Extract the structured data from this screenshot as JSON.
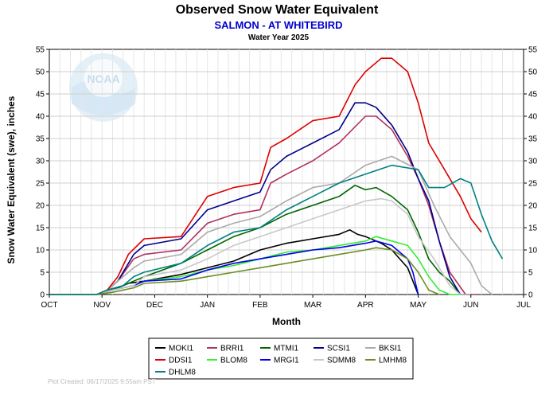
{
  "chart_data": {
    "type": "line",
    "title": "Observed Snow Water Equivalent",
    "subtitle": "SALMON - AT WHITEBIRD",
    "subtitle2": "Water Year 2025",
    "xlabel": "Month",
    "ylabel": "Snow Water Equivalent (swe),  inches",
    "ylim": [
      0,
      55
    ],
    "yticks": [
      "0",
      "5",
      "10",
      "15",
      "20",
      "25",
      "30",
      "35",
      "40",
      "45",
      "50",
      "55"
    ],
    "xlim": [
      0,
      9
    ],
    "x_tick_labels": [
      "OCT",
      "NOV",
      "DEC",
      "JAN",
      "FEB",
      "MAR",
      "APR",
      "MAY",
      "JUN",
      "JUL"
    ],
    "grid": true,
    "legend_position": "bottom",
    "logo_text": "NOAA",
    "footer": "Plot Created: 06/17/2025 9:55am PST",
    "series": [
      {
        "name": "MOKI1",
        "color": "#000000",
        "x": [
          0,
          0.9,
          1.0,
          1.3,
          1.5,
          1.8,
          2.5,
          3.0,
          3.5,
          4.0,
          4.5,
          5.0,
          5.5,
          5.7,
          5.85,
          6.0,
          6.3,
          6.5,
          6.8,
          7.0
        ],
        "y": [
          0,
          0,
          0.5,
          1.5,
          2.5,
          3,
          4.5,
          6,
          7.5,
          10,
          11.5,
          12.5,
          13.5,
          14.5,
          13.5,
          13,
          11.5,
          10,
          6,
          0
        ]
      },
      {
        "name": "BRRI1",
        "color": "#b03060",
        "x": [
          0,
          0.9,
          1.1,
          1.3,
          1.6,
          1.8,
          2.5,
          3.0,
          3.5,
          4.0,
          4.2,
          4.5,
          5.0,
          5.5,
          6.0,
          6.2,
          6.5,
          6.8,
          7.0,
          7.2,
          7.4,
          7.6,
          7.9,
          8.0,
          8.1
        ],
        "y": [
          0,
          0,
          1,
          3,
          8,
          9,
          10,
          16,
          18,
          19,
          25,
          27,
          30,
          34,
          40,
          40,
          37,
          31,
          26,
          20,
          12,
          5,
          0,
          0,
          0
        ]
      },
      {
        "name": "MTMI1",
        "color": "#006400",
        "x": [
          0,
          0.9,
          1.2,
          1.6,
          1.8,
          2.5,
          3.0,
          3.5,
          4.0,
          4.5,
          5.0,
          5.5,
          5.8,
          6.0,
          6.2,
          6.5,
          6.8,
          7.0,
          7.2,
          7.4,
          7.6,
          7.8,
          8.0
        ],
        "y": [
          0,
          0,
          1,
          3,
          4,
          7,
          10,
          13,
          15,
          18,
          20,
          22,
          24.5,
          23.5,
          24,
          22,
          19,
          14,
          8,
          5,
          3,
          0,
          0
        ]
      },
      {
        "name": "SCSI1",
        "color": "#00008b",
        "x": [
          0,
          0.9,
          1.1,
          1.3,
          1.6,
          1.8,
          2.5,
          3.0,
          3.5,
          4.0,
          4.2,
          4.5,
          5.0,
          5.5,
          5.8,
          6.0,
          6.2,
          6.5,
          6.8,
          7.0,
          7.2,
          7.4,
          7.6,
          7.8,
          8.0
        ],
        "y": [
          0,
          0,
          1,
          3,
          9,
          11,
          12.5,
          19,
          21,
          23,
          28,
          31,
          34,
          37,
          43,
          43,
          42,
          38,
          32,
          26,
          21,
          12,
          4,
          0,
          0
        ]
      },
      {
        "name": "BKSI1",
        "color": "#aaaaaa",
        "x": [
          0,
          0.9,
          1.1,
          1.3,
          1.6,
          1.8,
          2.5,
          3.0,
          3.5,
          4.0,
          4.5,
          5.0,
          5.5,
          6.0,
          6.5,
          7.0,
          7.3,
          7.6,
          8.0,
          8.2,
          8.4
        ],
        "y": [
          0,
          0,
          1,
          3,
          6,
          7.5,
          9,
          14,
          16,
          17.5,
          21,
          24,
          25,
          29,
          31,
          28,
          20,
          13,
          7,
          2,
          0
        ]
      },
      {
        "name": "DDSI1",
        "color": "#dd0000",
        "x": [
          0,
          0.9,
          1.1,
          1.3,
          1.5,
          1.8,
          2.5,
          3.0,
          3.5,
          4.0,
          4.2,
          4.5,
          5.0,
          5.5,
          5.8,
          6.0,
          6.3,
          6.5,
          6.8,
          7.0,
          7.2,
          7.5,
          7.8,
          8.0,
          8.2
        ],
        "y": [
          0,
          0,
          1,
          4,
          9,
          12.5,
          13,
          22,
          24,
          25,
          33,
          35,
          39,
          40,
          47,
          50,
          53,
          53,
          50,
          43,
          34,
          28,
          22,
          17,
          14
        ]
      },
      {
        "name": "BLOM8",
        "color": "#33ee33",
        "x": [
          0,
          0.9,
          1.2,
          1.6,
          1.8,
          2.5,
          3.0,
          3.5,
          4.0,
          4.5,
          5.0,
          5.5,
          6.0,
          6.2,
          6.5,
          6.8,
          7.0,
          7.2,
          7.4,
          7.6,
          7.8
        ],
        "y": [
          0,
          0,
          1,
          2,
          3,
          4,
          5.5,
          6.5,
          8,
          9.5,
          10,
          11,
          12,
          13,
          12,
          11,
          8,
          4,
          1,
          0,
          0
        ]
      },
      {
        "name": "MRGI1",
        "color": "#0000ee",
        "x": [
          0,
          0.9,
          1.2,
          1.6,
          1.8,
          2.5,
          3.0,
          3.5,
          4.0,
          4.5,
          5.0,
          5.5,
          6.0,
          6.2,
          6.5,
          6.8,
          6.9,
          7.0
        ],
        "y": [
          0,
          0,
          1,
          2,
          3,
          3.5,
          5.5,
          7,
          8,
          9,
          10,
          10.5,
          11.5,
          12,
          11,
          8,
          5,
          0
        ]
      },
      {
        "name": "SDMM8",
        "color": "#c8c8c8",
        "x": [
          0,
          0.9,
          1.2,
          1.6,
          1.8,
          2.5,
          3.0,
          3.5,
          4.0,
          4.5,
          5.0,
          5.5,
          6.0,
          6.3,
          6.5,
          6.8,
          7.0,
          7.3,
          7.6,
          7.8,
          8.0
        ],
        "y": [
          0,
          0,
          1,
          2,
          4,
          5.5,
          8,
          11,
          13,
          15,
          17,
          19,
          21,
          21.5,
          21,
          18,
          13,
          8,
          2,
          0,
          0
        ]
      },
      {
        "name": "LMHM8",
        "color": "#6b8e23",
        "x": [
          0,
          0.9,
          1.2,
          1.6,
          1.8,
          2.5,
          3.0,
          3.5,
          4.0,
          4.5,
          5.0,
          5.5,
          6.0,
          6.2,
          6.5,
          6.8,
          7.0,
          7.2,
          7.4
        ],
        "y": [
          0,
          0,
          0.5,
          1.5,
          2.5,
          3,
          4,
          5,
          6,
          7,
          8,
          9,
          10,
          10.5,
          10,
          8,
          5,
          1,
          0
        ]
      },
      {
        "name": "DHLM8",
        "color": "#008080",
        "x": [
          0,
          0.9,
          1.1,
          1.4,
          1.6,
          1.8,
          2.5,
          3.0,
          3.5,
          4.0,
          4.5,
          5.0,
          5.5,
          6.0,
          6.5,
          7.0,
          7.2,
          7.5,
          7.8,
          8.0,
          8.2,
          8.4,
          8.6
        ],
        "y": [
          0,
          0,
          1,
          2,
          4,
          5,
          7,
          11,
          14,
          15,
          19,
          22,
          25,
          27,
          29,
          28,
          24,
          24,
          26,
          25,
          18,
          12,
          8
        ]
      }
    ]
  }
}
